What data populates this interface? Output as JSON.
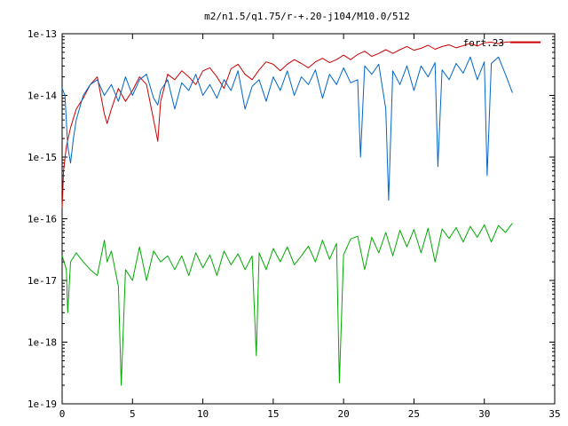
{
  "chart_data": {
    "type": "line",
    "title": "m2/n1.5/q1.75/r-+.20-j104/M10.0/512",
    "xlabel": "",
    "ylabel": "",
    "xlim": [
      0,
      35
    ],
    "ylim": [
      1e-19,
      1e-13
    ],
    "yscale": "log",
    "grid": false,
    "legend_position": "top-right",
    "x_ticks": [
      0,
      5,
      10,
      15,
      20,
      25,
      30,
      35
    ],
    "x_tick_labels": [
      "0",
      "5",
      "10",
      "15",
      "20",
      "25",
      "30",
      "35"
    ],
    "y_ticks": [
      1e-19,
      1e-18,
      1e-17,
      1e-16,
      1e-15,
      1e-14,
      1e-13
    ],
    "y_tick_labels": [
      "1e-19",
      "1e-18",
      "1e-17",
      "1e-16",
      "1e-15",
      "1e-14",
      "1e-13"
    ],
    "series": [
      {
        "name": "fort.23",
        "color": "#cc0000",
        "x": [
          0,
          0.1,
          0.3,
          0.6,
          1,
          1.5,
          2,
          2.5,
          3,
          3.2,
          3.5,
          4,
          4.5,
          5,
          5.5,
          6,
          6.5,
          6.8,
          7,
          7.5,
          8,
          8.5,
          9,
          9.5,
          10,
          10.5,
          11,
          11.5,
          12,
          12.5,
          13,
          13.5,
          14,
          14.5,
          15,
          15.5,
          16,
          16.5,
          17,
          17.5,
          18,
          18.5,
          19,
          19.5,
          20,
          20.5,
          21,
          21.5,
          22,
          22.5,
          23,
          23.5,
          24,
          24.5,
          25,
          25.5,
          26,
          26.5,
          27,
          27.5,
          28,
          28.5,
          29,
          29.5,
          30,
          30.5,
          31,
          31.5,
          32,
          32.5,
          33,
          33.5,
          34
        ],
        "y": [
          1.5e-16,
          6e-16,
          1.5e-15,
          3e-15,
          6e-15,
          9e-15,
          1.5e-14,
          2e-14,
          5e-15,
          3.5e-15,
          6e-15,
          1.3e-14,
          8e-15,
          1.2e-14,
          2e-14,
          1.5e-14,
          4e-15,
          1.8e-15,
          8e-15,
          2.2e-14,
          1.8e-14,
          2.5e-14,
          2e-14,
          1.5e-14,
          2.5e-14,
          2.8e-14,
          2e-14,
          1.3e-14,
          2.7e-14,
          3.2e-14,
          2.2e-14,
          1.8e-14,
          2.6e-14,
          3.5e-14,
          3.2e-14,
          2.5e-14,
          3.2e-14,
          3.8e-14,
          3.3e-14,
          2.8e-14,
          3.5e-14,
          4e-14,
          3.4e-14,
          3.8e-14,
          4.5e-14,
          3.8e-14,
          4.6e-14,
          5.2e-14,
          4.3e-14,
          4.8e-14,
          5.5e-14,
          4.8e-14,
          5.5e-14,
          6.2e-14,
          5.4e-14,
          5.8e-14,
          6.5e-14,
          5.6e-14,
          6.2e-14,
          6.6e-14,
          5.9e-14,
          6.4e-14,
          7e-14,
          6.3e-14,
          7.1e-14,
          7.3e-14,
          6.9e-14,
          7.3e-14,
          7.4e-14,
          7.4e-14,
          7.4e-14,
          7.4e-14,
          7.4e-14
        ]
      },
      {
        "color": "#0066cc",
        "x": [
          0,
          0.2,
          0.4,
          0.6,
          0.8,
          1,
          1.5,
          2,
          2.5,
          3,
          3.5,
          4,
          4.5,
          5,
          5.5,
          6,
          6.5,
          6.8,
          7,
          7.5,
          8,
          8.5,
          9,
          9.5,
          10,
          10.5,
          11,
          11.5,
          12,
          12.5,
          13,
          13.5,
          14,
          14.5,
          15,
          15.5,
          16,
          16.5,
          17,
          17.5,
          18,
          18.5,
          19,
          19.5,
          20,
          20.5,
          21,
          21.2,
          21.5,
          22,
          22.5,
          23,
          23.2,
          23.5,
          24,
          24.5,
          25,
          25.5,
          26,
          26.5,
          26.7,
          27,
          27.5,
          28,
          28.5,
          29,
          29.5,
          30,
          30.2,
          30.5,
          31,
          31.5,
          32
        ],
        "y": [
          1.3e-14,
          1e-14,
          1.5e-15,
          8e-16,
          2e-15,
          4e-15,
          1e-14,
          1.5e-14,
          1.8e-14,
          1e-14,
          1.5e-14,
          8e-15,
          2e-14,
          1e-14,
          1.8e-14,
          2.2e-14,
          9e-15,
          7e-15,
          1.2e-14,
          1.8e-14,
          6e-15,
          1.6e-14,
          1.2e-14,
          2.2e-14,
          1e-14,
          1.5e-14,
          9e-15,
          1.8e-14,
          1.2e-14,
          2.5e-14,
          6e-15,
          1.4e-14,
          1.8e-14,
          8e-15,
          2e-14,
          1.2e-14,
          2.5e-14,
          1e-14,
          2e-14,
          1.5e-14,
          2.6e-14,
          9e-15,
          2.2e-14,
          1.5e-14,
          2.8e-14,
          1.6e-14,
          1.8e-14,
          1e-15,
          3e-14,
          2.2e-14,
          3.2e-14,
          6e-15,
          2e-16,
          2.5e-14,
          1.5e-14,
          3e-14,
          1.2e-14,
          3e-14,
          2e-14,
          3.4e-14,
          7e-16,
          2.6e-14,
          1.8e-14,
          3.3e-14,
          2.3e-14,
          4.2e-14,
          1.8e-14,
          3.5e-14,
          5e-16,
          3.3e-14,
          4.2e-14,
          2.2e-14,
          1.1e-14
        ]
      },
      {
        "color": "#00aa00",
        "x": [
          0,
          0.3,
          0.4,
          0.6,
          1,
          1.5,
          2,
          2.5,
          3,
          3.2,
          3.5,
          4,
          4.2,
          4.5,
          5,
          5.5,
          6,
          6.5,
          7,
          7.5,
          8,
          8.5,
          9,
          9.5,
          10,
          10.5,
          11,
          11.5,
          12,
          12.5,
          13,
          13.5,
          13.8,
          14,
          14.5,
          15,
          15.5,
          16,
          16.5,
          17,
          17.5,
          18,
          18.5,
          19,
          19.5,
          19.7,
          20,
          20.5,
          21,
          21.5,
          22,
          22.5,
          23,
          23.5,
          24,
          24.5,
          25,
          25.5,
          26,
          26.5,
          27,
          27.5,
          28,
          28.5,
          29,
          29.5,
          30,
          30.5,
          31,
          31.5,
          32
        ],
        "y": [
          2.5e-17,
          1.5e-17,
          3e-18,
          2e-17,
          2.8e-17,
          2e-17,
          1.5e-17,
          1.2e-17,
          4.5e-17,
          2e-17,
          3e-17,
          8e-18,
          2e-19,
          1.5e-17,
          1e-17,
          3.5e-17,
          1e-17,
          3e-17,
          2e-17,
          2.5e-17,
          1.5e-17,
          2.5e-17,
          1.2e-17,
          2.8e-17,
          1.6e-17,
          2.6e-17,
          1.2e-17,
          3e-17,
          1.8e-17,
          2.7e-17,
          1.5e-17,
          2.5e-17,
          6e-19,
          2.8e-17,
          1.5e-17,
          3.3e-17,
          2e-17,
          3.5e-17,
          1.8e-17,
          2.5e-17,
          3.6e-17,
          2e-17,
          4.5e-17,
          2.2e-17,
          4e-17,
          2.2e-19,
          2.6e-17,
          4.7e-17,
          5.2e-17,
          1.5e-17,
          5e-17,
          2.8e-17,
          6e-17,
          2.5e-17,
          6.5e-17,
          3.5e-17,
          6.7e-17,
          2.8e-17,
          7e-17,
          2e-17,
          6.8e-17,
          4.8e-17,
          7.2e-17,
          4.2e-17,
          7.5e-17,
          5e-17,
          8e-17,
          4.2e-17,
          7.8e-17,
          6e-17,
          8.5e-17
        ]
      }
    ]
  }
}
